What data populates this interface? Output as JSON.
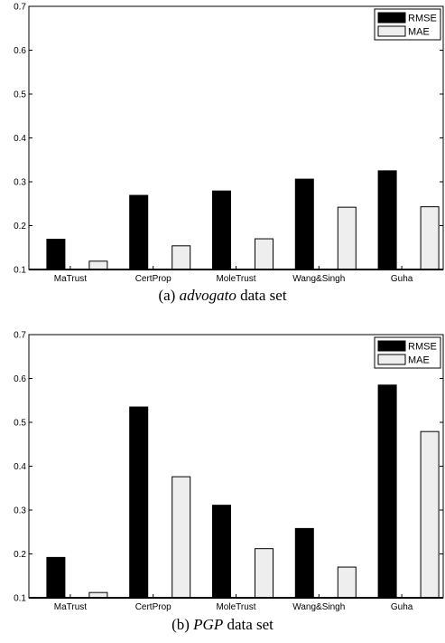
{
  "chart_data": [
    {
      "type": "bar",
      "caption": {
        "prefix": "(a) ",
        "name": "advogato",
        "suffix": " data set"
      },
      "categories": [
        "MaTrust",
        "CertProp",
        "MoleTrust",
        "Wang&Singh",
        "Guha"
      ],
      "series": [
        {
          "name": "RMSE",
          "values": [
            0.169,
            0.269,
            0.279,
            0.306,
            0.325
          ],
          "color": "#000000"
        },
        {
          "name": "MAE",
          "values": [
            0.119,
            0.154,
            0.17,
            0.242,
            0.243
          ],
          "color": "#eeeeee"
        }
      ],
      "ylim": [
        0.1,
        0.7
      ],
      "yticks": [
        "0.1",
        "0.2",
        "0.3",
        "0.4",
        "0.5",
        "0.6",
        "0.7"
      ],
      "legend": "top-right",
      "grid": false
    },
    {
      "type": "bar",
      "caption": {
        "prefix": "(b) ",
        "name": "PGP",
        "suffix": " data set"
      },
      "categories": [
        "MaTrust",
        "CertProp",
        "MoleTrust",
        "Wang&Singh",
        "Guha"
      ],
      "series": [
        {
          "name": "RMSE",
          "values": [
            0.192,
            0.535,
            0.311,
            0.258,
            0.585
          ],
          "color": "#000000"
        },
        {
          "name": "MAE",
          "values": [
            0.112,
            0.376,
            0.212,
            0.17,
            0.479
          ],
          "color": "#eeeeee"
        }
      ],
      "ylim": [
        0.1,
        0.7
      ],
      "yticks": [
        "0.1",
        "0.2",
        "0.3",
        "0.4",
        "0.5",
        "0.6",
        "0.7"
      ],
      "legend": "top-right",
      "grid": false
    }
  ]
}
